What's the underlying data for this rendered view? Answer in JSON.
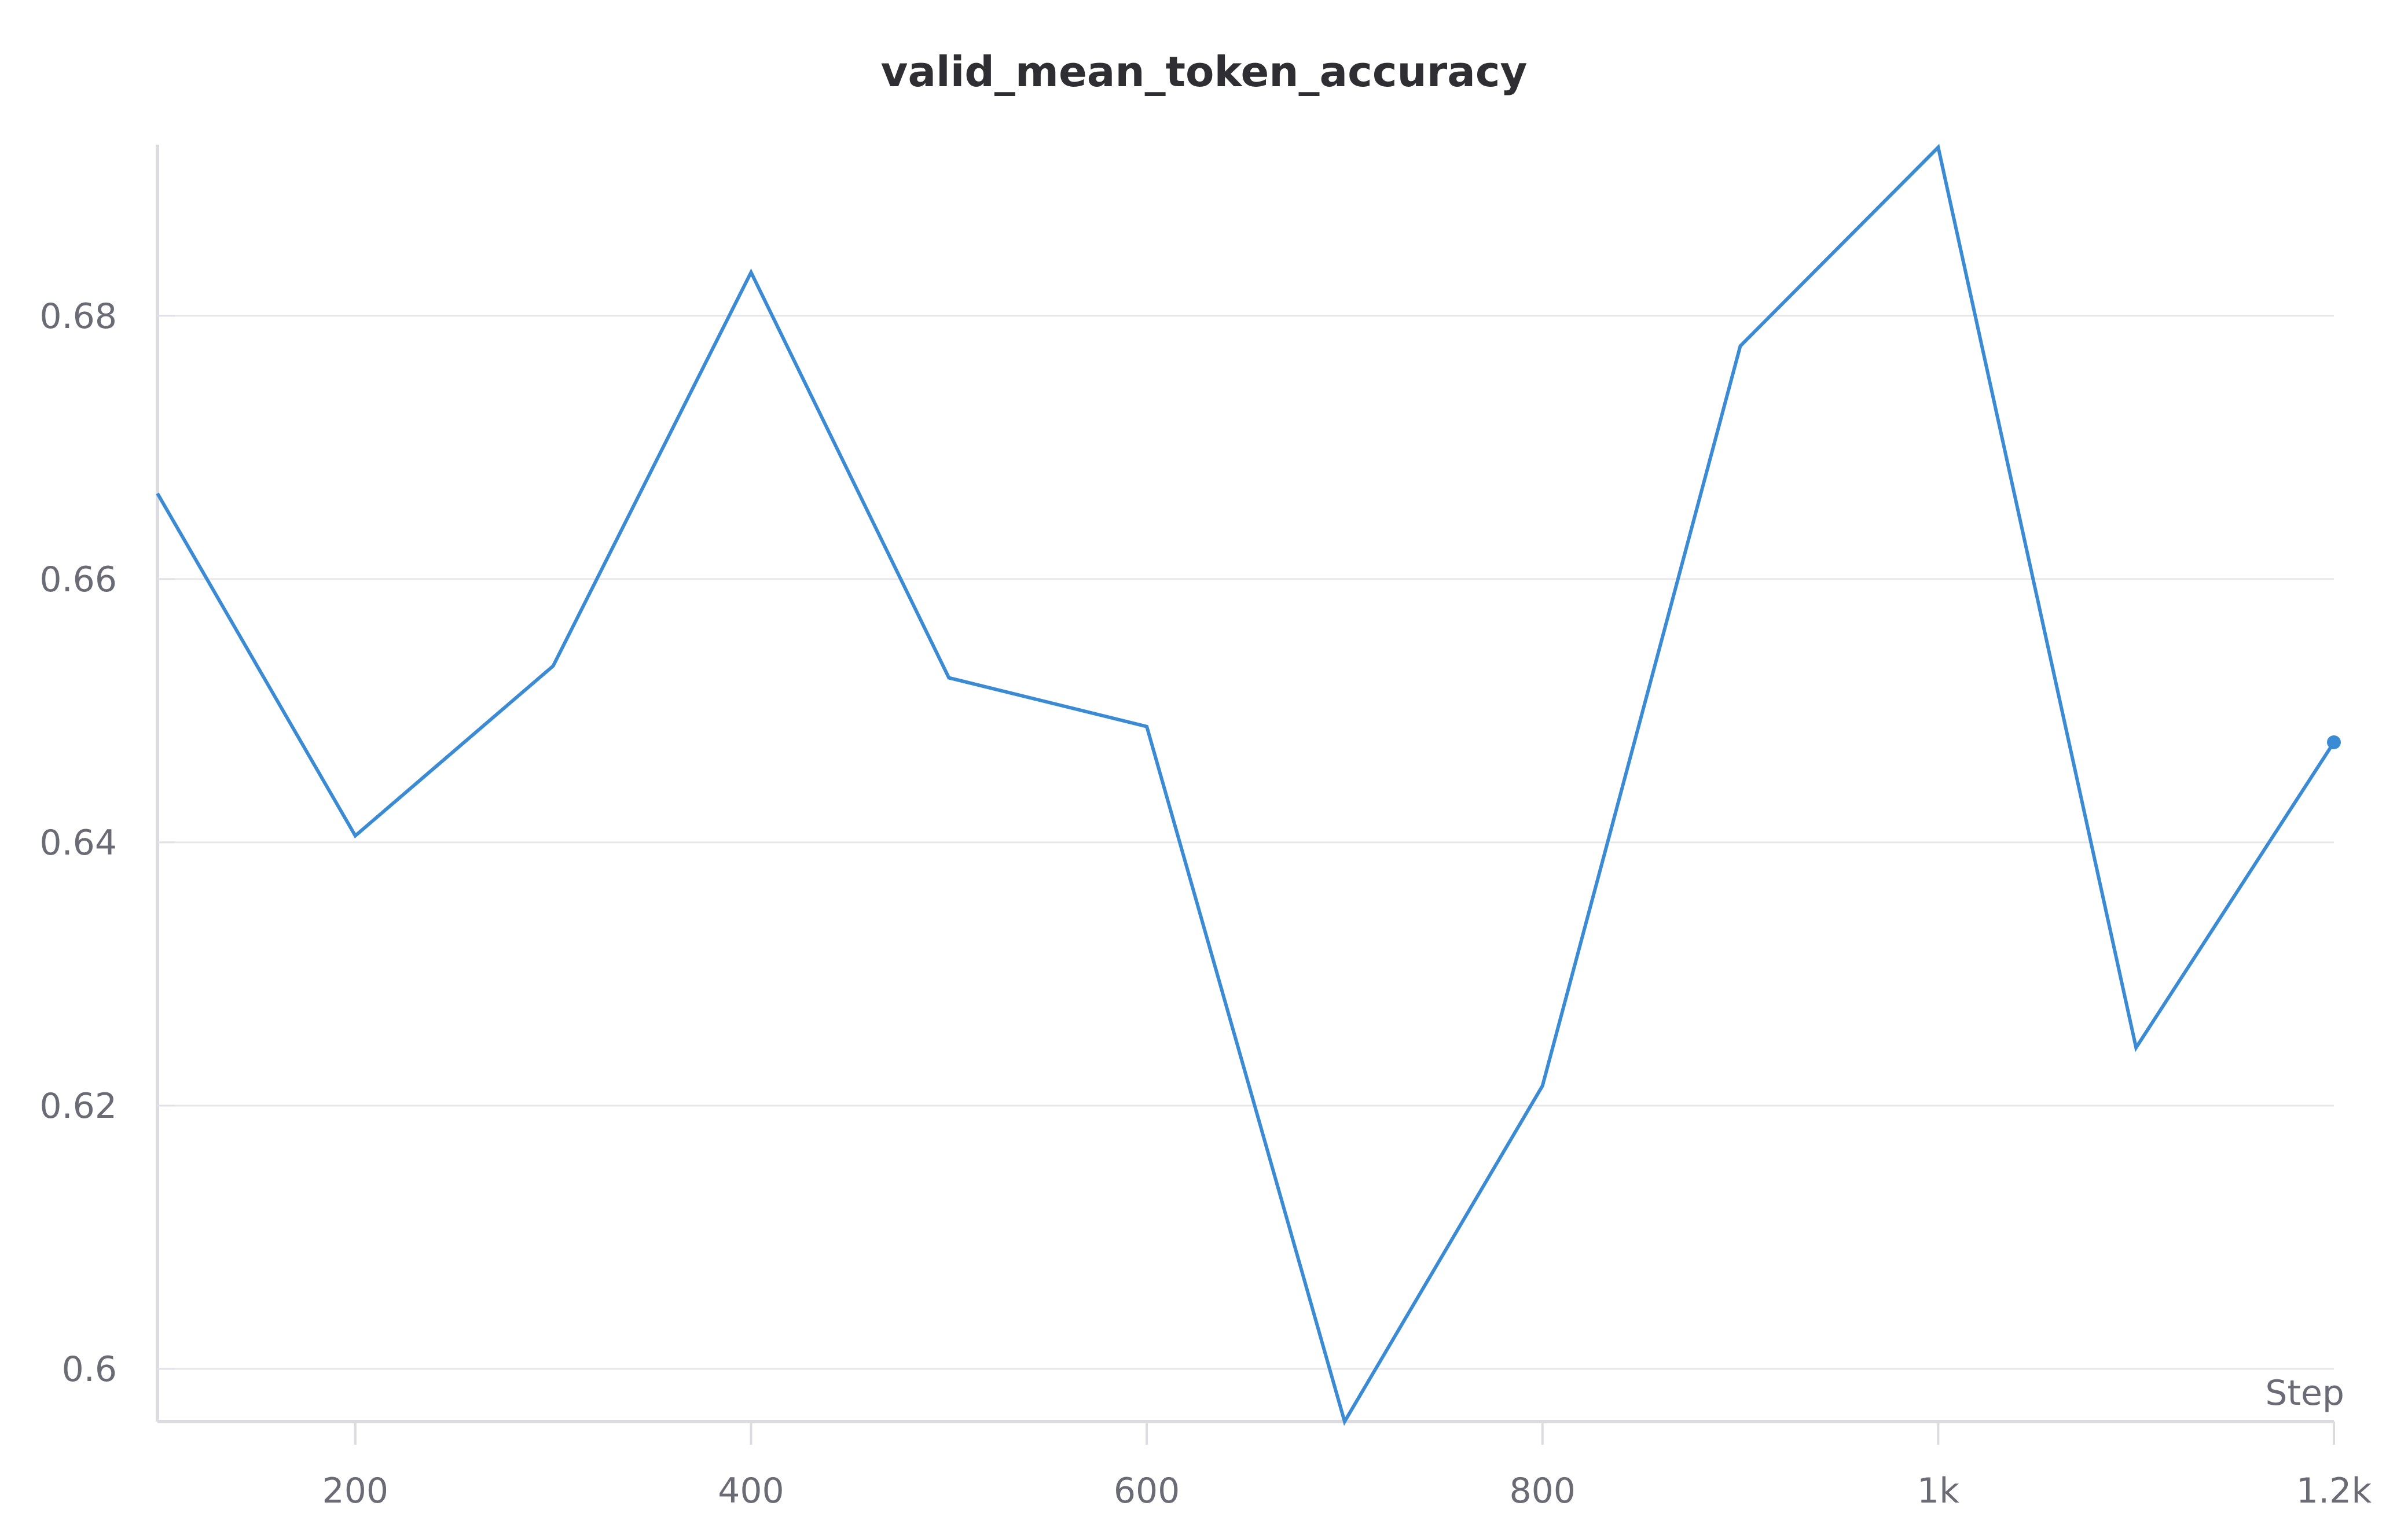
{
  "chart_data": {
    "type": "line",
    "title": "valid_mean_token_accuracy",
    "xlabel": "Step",
    "ylabel": "",
    "xlim": [
      100,
      1200
    ],
    "ylim": [
      0.596,
      0.693
    ],
    "x_ticks": [
      200,
      400,
      600,
      800,
      1000,
      1200
    ],
    "x_tick_labels": [
      "200",
      "400",
      "600",
      "800",
      "1k",
      "1.2k"
    ],
    "y_ticks": [
      0.6,
      0.62,
      0.64,
      0.66,
      0.68
    ],
    "y_tick_labels": [
      "0.6",
      "0.62",
      "0.64",
      "0.66",
      "0.68"
    ],
    "grid": true,
    "series": [
      {
        "color": "#3b8bd4",
        "x": [
          100,
          200,
          300,
          400,
          500,
          600,
          700,
          800,
          900,
          1000,
          1100,
          1200
        ],
        "y": [
          0.6665,
          0.6405,
          0.6534,
          0.6833,
          0.6525,
          0.6488,
          0.596,
          0.6215,
          0.6777,
          0.6928,
          0.6244,
          0.6476
        ]
      }
    ]
  }
}
